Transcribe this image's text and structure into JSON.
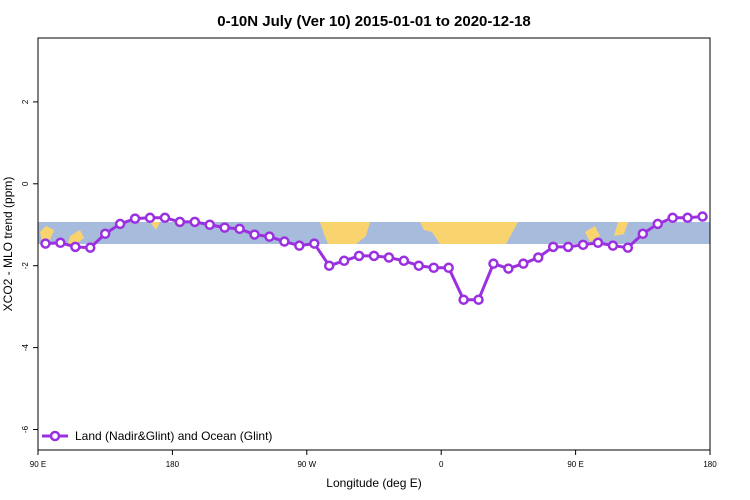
{
  "chart_data": {
    "type": "line",
    "title": "0-10N July (Ver 10)   2015-01-01 to 2020-12-18",
    "x_label": "Longitude (deg E)",
    "y_label": "XCO2 - MLO trend (ppm)",
    "x": [
      95,
      105,
      115,
      125,
      135,
      145,
      155,
      165,
      175,
      185,
      195,
      205,
      215,
      225,
      235,
      245,
      255,
      265,
      275,
      285,
      295,
      305,
      315,
      325,
      335,
      345,
      355,
      365,
      375,
      385,
      395,
      405,
      415,
      425,
      435,
      445,
      455,
      465,
      475,
      485,
      495,
      505,
      515,
      525,
      535
    ],
    "series": [
      {
        "name": "Land (Nadir&Glint) and Ocean (Glint)",
        "color": "#9b30e0",
        "values": [
          -1.46,
          -1.44,
          -1.54,
          -1.56,
          -1.22,
          -0.98,
          -0.85,
          -0.83,
          -0.83,
          -0.93,
          -0.93,
          -1.0,
          -1.07,
          -1.1,
          -1.24,
          -1.29,
          -1.41,
          -1.51,
          -1.46,
          -2.0,
          -1.88,
          -1.76,
          -1.76,
          -1.8,
          -1.88,
          -2.0,
          -2.05,
          -2.05,
          -2.83,
          -2.83,
          -1.95,
          -2.07,
          -1.95,
          -1.8,
          -1.54,
          -1.54,
          -1.49,
          -1.44,
          -1.51,
          -1.56,
          -1.22,
          -0.98,
          -0.83,
          -0.83,
          -0.8
        ]
      }
    ],
    "xlim": [
      90,
      540
    ],
    "xticks": [
      {
        "value": 90,
        "label": "90 E"
      },
      {
        "value": 180,
        "label": "180"
      },
      {
        "value": 270,
        "label": "90 W"
      },
      {
        "value": 360,
        "label": "0"
      },
      {
        "value": 450,
        "label": "90 E"
      },
      {
        "value": 540,
        "label": "180"
      }
    ],
    "ylim": [
      -6.5,
      3.56
    ],
    "yticks": [
      2,
      0,
      -2,
      -4,
      -6
    ],
    "legend": "bottom-left"
  }
}
